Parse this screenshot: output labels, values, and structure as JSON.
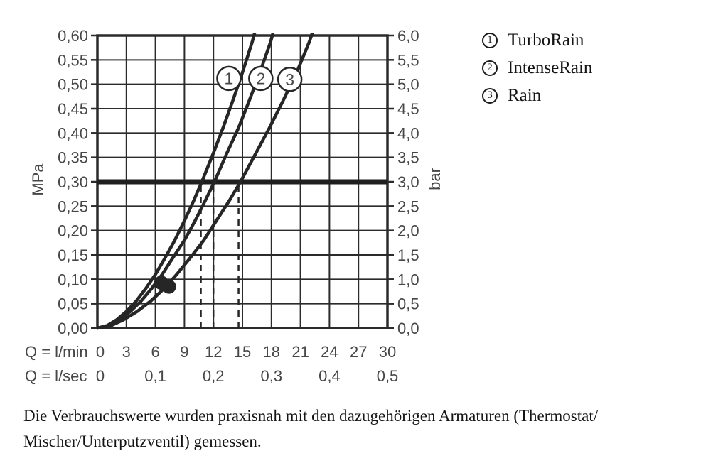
{
  "legend": {
    "items": [
      {
        "number": "1",
        "label": "TurboRain"
      },
      {
        "number": "2",
        "label": "IntenseRain"
      },
      {
        "number": "3",
        "label": "Rain"
      }
    ]
  },
  "caption": {
    "line1": "Die Verbrauchswerte wurden praxisnah mit den dazugehörigen Armaturen (Thermostat/",
    "line2": "Mischer/Unterputzventil) gemessen."
  },
  "chart_data": {
    "type": "line",
    "title": "",
    "x_axis": {
      "row1_label": "Q = l/min",
      "row2_label": "Q = l/sec",
      "lmin_ticks": [
        0,
        3,
        6,
        9,
        12,
        15,
        18,
        21,
        24,
        27,
        30
      ],
      "lsec_ticks": [
        {
          "q": 0,
          "label": "0"
        },
        {
          "q": 6,
          "label": "0,1"
        },
        {
          "q": 12,
          "label": "0,2"
        },
        {
          "q": 18,
          "label": "0,3"
        },
        {
          "q": 24,
          "label": "0,4"
        },
        {
          "q": 30,
          "label": "0,5"
        }
      ],
      "range_lmin": [
        0,
        30
      ]
    },
    "y_left": {
      "unit": "MPa",
      "range": [
        0,
        0.6
      ],
      "tick_labels": [
        "0,60",
        "0,55",
        "0,50",
        "0,45",
        "0,40",
        "0,35",
        "0,30",
        "0,25",
        "0,20",
        "0,15",
        "0,10",
        "0,05",
        "0,00"
      ]
    },
    "y_right": {
      "unit": "bar",
      "range": [
        0,
        6
      ],
      "tick_labels": [
        "6,0",
        "5,5",
        "5,0",
        "4,5",
        "4,0",
        "3,5",
        "3,0",
        "2,5",
        "2,0",
        "1,5",
        "1,0",
        "0,5",
        "0,0"
      ]
    },
    "grid": true,
    "reference_line_bar": 3.0,
    "dashed_guides_lmin": [
      10.7,
      12.0,
      14.6
    ],
    "operating_dots": [
      {
        "q": 6.6,
        "bar": 0.93
      },
      {
        "q": 7.4,
        "bar": 0.85
      }
    ],
    "series": [
      {
        "id": "1",
        "name": "TurboRain",
        "q_lmin_at_3bar": 10.8,
        "label_pos": {
          "q": 13.6,
          "bar": 5.12
        },
        "points": [
          [
            0,
            0
          ],
          [
            1,
            0.05
          ],
          [
            2,
            0.17
          ],
          [
            3,
            0.34
          ],
          [
            4,
            0.55
          ],
          [
            5,
            0.81
          ],
          [
            6,
            1.1
          ],
          [
            7,
            1.44
          ],
          [
            8,
            1.8
          ],
          [
            9,
            2.2
          ],
          [
            10,
            2.63
          ],
          [
            10.8,
            3.0
          ],
          [
            12,
            3.59
          ],
          [
            13,
            4.11
          ],
          [
            14,
            4.66
          ],
          [
            15,
            5.24
          ],
          [
            16,
            5.86
          ],
          [
            16.4,
            6.15
          ]
        ]
      },
      {
        "id": "2",
        "name": "IntenseRain",
        "q_lmin_at_3bar": 12.1,
        "label_pos": {
          "q": 16.9,
          "bar": 5.12
        },
        "points": [
          [
            0,
            0
          ],
          [
            1.1,
            0.05
          ],
          [
            2.2,
            0.17
          ],
          [
            3.4,
            0.34
          ],
          [
            4.5,
            0.55
          ],
          [
            5.6,
            0.81
          ],
          [
            6.7,
            1.1
          ],
          [
            7.8,
            1.44
          ],
          [
            9.0,
            1.8
          ],
          [
            10.1,
            2.2
          ],
          [
            11.2,
            2.63
          ],
          [
            12.1,
            3.0
          ],
          [
            13.4,
            3.59
          ],
          [
            14.6,
            4.11
          ],
          [
            15.7,
            4.66
          ],
          [
            16.8,
            5.24
          ],
          [
            17.9,
            5.86
          ],
          [
            18.3,
            6.15
          ]
        ]
      },
      {
        "id": "3",
        "name": "Rain",
        "q_lmin_at_3bar": 14.8,
        "label_pos": {
          "q": 19.9,
          "bar": 5.1
        },
        "points": [
          [
            0,
            0
          ],
          [
            1.4,
            0.05
          ],
          [
            2.7,
            0.17
          ],
          [
            4.1,
            0.34
          ],
          [
            5.5,
            0.55
          ],
          [
            6.9,
            0.81
          ],
          [
            8.2,
            1.1
          ],
          [
            9.6,
            1.44
          ],
          [
            11.0,
            1.8
          ],
          [
            12.3,
            2.2
          ],
          [
            13.7,
            2.63
          ],
          [
            14.8,
            3.0
          ],
          [
            16.4,
            3.59
          ],
          [
            17.8,
            4.11
          ],
          [
            19.2,
            4.66
          ],
          [
            20.6,
            5.24
          ],
          [
            21.9,
            5.86
          ],
          [
            22.4,
            6.15
          ]
        ]
      }
    ],
    "colors": {
      "line": "#262626",
      "grid": "#2b2b2b",
      "reference_line": "#1f1f1f",
      "tick_text": "#474747",
      "circle_fill": "#ffffff"
    }
  }
}
